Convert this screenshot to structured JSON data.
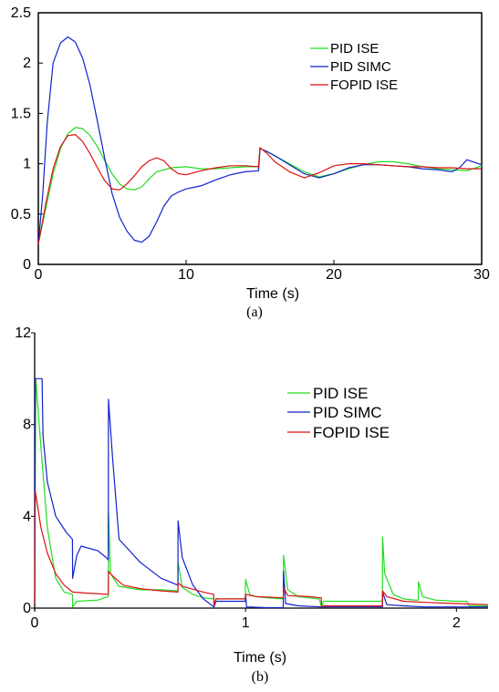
{
  "colors": {
    "pid_ise": "#22dd22",
    "pid_simc": "#1122cc",
    "fopid_ise": "#dd1111"
  },
  "chart_data": [
    {
      "type": "line",
      "caption": "(a)",
      "xlabel": "Time (s)",
      "ylabel": "",
      "xlim": [
        0,
        30
      ],
      "ylim": [
        0,
        2.5
      ],
      "xticks": [
        "0",
        "10",
        "20",
        "30"
      ],
      "yticks": [
        "0",
        "0.5",
        "1",
        "1.5",
        "2",
        "2.5"
      ],
      "legend": "top-right",
      "series": [
        {
          "name": "PID ISE",
          "color_key": "pid_ise",
          "x": [
            0,
            0.5,
            1,
            1.5,
            2,
            2.5,
            3,
            3.5,
            4,
            4.5,
            5,
            5.5,
            6,
            6.5,
            7,
            7.5,
            8,
            9,
            10,
            11,
            12,
            13,
            14,
            14.9,
            15,
            15.5,
            16,
            17,
            18,
            19,
            20,
            21,
            22,
            23,
            24,
            25,
            26,
            27,
            28,
            29,
            30
          ],
          "y": [
            0.2,
            0.55,
            0.9,
            1.15,
            1.3,
            1.36,
            1.35,
            1.28,
            1.17,
            1.03,
            0.9,
            0.8,
            0.75,
            0.74,
            0.77,
            0.85,
            0.92,
            0.96,
            0.97,
            0.95,
            0.95,
            0.96,
            0.97,
            0.97,
            1.15,
            1.12,
            1.08,
            1.0,
            0.92,
            0.87,
            0.9,
            0.95,
            0.99,
            1.02,
            1.02,
            1.0,
            0.97,
            0.95,
            0.94,
            0.93,
            0.98
          ]
        },
        {
          "name": "PID SIMC",
          "color_key": "pid_simc",
          "x": [
            0,
            0.3,
            0.6,
            1,
            1.5,
            2,
            2.5,
            3,
            3.5,
            4,
            4.5,
            5,
            5.5,
            6,
            6.5,
            7,
            7.5,
            8,
            8.5,
            9,
            9.5,
            10,
            11,
            12,
            13,
            14,
            14.9,
            15,
            15.5,
            16,
            17,
            18,
            19,
            20,
            21,
            22,
            23,
            24,
            25,
            26,
            27,
            28,
            28.5,
            29,
            30
          ],
          "y": [
            0.2,
            0.7,
            1.4,
            2.0,
            2.2,
            2.26,
            2.21,
            2.05,
            1.78,
            1.42,
            1.05,
            0.7,
            0.47,
            0.33,
            0.24,
            0.22,
            0.28,
            0.42,
            0.58,
            0.68,
            0.72,
            0.75,
            0.78,
            0.84,
            0.89,
            0.92,
            0.93,
            1.15,
            1.12,
            1.08,
            0.99,
            0.9,
            0.86,
            0.9,
            0.96,
            0.99,
            0.99,
            0.98,
            0.97,
            0.95,
            0.94,
            0.92,
            0.96,
            1.04,
            0.99
          ]
        },
        {
          "name": "FOPID ISE",
          "color_key": "fopid_ise",
          "x": [
            0,
            0.5,
            1,
            1.5,
            2,
            2.5,
            3,
            3.5,
            4,
            4.5,
            5,
            5.5,
            6,
            6.5,
            7,
            7.5,
            8,
            8.5,
            9,
            9.5,
            10,
            11,
            12,
            13,
            14,
            14.9,
            15,
            15.5,
            16,
            17,
            18,
            19,
            20,
            21,
            22,
            23,
            24,
            25,
            26,
            27,
            28,
            29,
            30
          ],
          "y": [
            0.2,
            0.6,
            0.95,
            1.17,
            1.28,
            1.29,
            1.22,
            1.1,
            0.96,
            0.83,
            0.75,
            0.74,
            0.8,
            0.88,
            0.97,
            1.03,
            1.06,
            1.03,
            0.95,
            0.9,
            0.89,
            0.93,
            0.96,
            0.98,
            0.98,
            0.97,
            1.16,
            1.1,
            1.02,
            0.92,
            0.86,
            0.91,
            0.98,
            1.0,
            1.0,
            0.99,
            0.98,
            0.97,
            0.97,
            0.96,
            0.96,
            0.95,
            0.95
          ]
        }
      ]
    },
    {
      "type": "line",
      "caption": "(b)",
      "xlabel": "Time (s)",
      "ylabel": "",
      "xlim": [
        0,
        2.15
      ],
      "ylim": [
        0,
        12
      ],
      "xticks": [
        "0",
        "1",
        "2"
      ],
      "yticks": [
        "0",
        "4",
        "8",
        "12"
      ],
      "legend": "top-right",
      "series": [
        {
          "name": "PID ISE",
          "color_key": "pid_ise",
          "x": [
            0,
            0.005,
            0.03,
            0.06,
            0.1,
            0.14,
            0.179,
            0.18,
            0.2,
            0.3,
            0.349,
            0.35,
            0.36,
            0.4,
            0.5,
            0.6,
            0.679,
            0.68,
            0.7,
            0.75,
            0.8,
            0.85,
            0.851,
            0.86,
            0.999,
            1.0,
            1.02,
            1.05,
            1.1,
            1.179,
            1.18,
            1.2,
            1.25,
            1.3,
            1.35,
            1.36,
            1.37,
            1.38,
            1.5,
            1.649,
            1.65,
            1.66,
            1.7,
            1.75,
            1.8,
            1.819,
            1.82,
            1.84,
            1.9,
            2.0,
            2.05,
            2.06,
            2.15
          ],
          "y": [
            0.2,
            10.0,
            7.0,
            3.5,
            1.3,
            0.7,
            0.6,
            0.05,
            0.3,
            0.35,
            0.5,
            4.2,
            1.5,
            0.95,
            0.8,
            0.8,
            0.75,
            2.0,
            0.9,
            0.6,
            0.45,
            0.4,
            0.05,
            0.4,
            0.4,
            1.25,
            0.6,
            0.5,
            0.45,
            0.4,
            2.3,
            0.8,
            0.5,
            0.45,
            0.4,
            0.05,
            0.3,
            0.3,
            0.3,
            0.3,
            3.1,
            1.5,
            0.6,
            0.4,
            0.35,
            0.35,
            1.15,
            0.5,
            0.35,
            0.3,
            0.3,
            0.1,
            0.1
          ]
        },
        {
          "name": "PID SIMC",
          "color_key": "pid_simc",
          "x": [
            0,
            0.003,
            0.035,
            0.04,
            0.06,
            0.1,
            0.15,
            0.179,
            0.18,
            0.2,
            0.22,
            0.3,
            0.34,
            0.349,
            0.35,
            0.37,
            0.4,
            0.5,
            0.6,
            0.679,
            0.68,
            0.7,
            0.75,
            0.8,
            0.85,
            0.86,
            0.999,
            1.0,
            1.005,
            1.1,
            1.179,
            1.18,
            1.19,
            1.25,
            1.36,
            1.5,
            1.649,
            1.65,
            1.67,
            1.75,
            1.85,
            2.0,
            2.15
          ],
          "y": [
            0.2,
            10.0,
            10.0,
            7.5,
            5.5,
            4.0,
            3.3,
            3.0,
            1.3,
            2.3,
            2.7,
            2.5,
            2.2,
            2.1,
            9.1,
            6.5,
            3.0,
            2.0,
            1.3,
            1.0,
            3.8,
            2.2,
            1.0,
            0.4,
            0.05,
            0.3,
            0.3,
            0.6,
            0.05,
            0.02,
            0.02,
            1.6,
            0.2,
            0.1,
            0.05,
            0.05,
            0.05,
            0.7,
            0.15,
            0.1,
            0.05,
            0.05,
            0.05
          ]
        },
        {
          "name": "FOPID ISE",
          "color_key": "fopid_ise",
          "x": [
            0,
            0.003,
            0.03,
            0.06,
            0.1,
            0.14,
            0.18,
            0.25,
            0.349,
            0.35,
            0.37,
            0.42,
            0.5,
            0.6,
            0.679,
            0.68,
            0.7,
            0.8,
            0.849,
            0.85,
            0.86,
            0.999,
            1.0,
            1.05,
            1.179,
            1.18,
            1.2,
            1.3,
            1.359,
            1.36,
            1.37,
            1.5,
            1.649,
            1.65,
            1.67,
            1.75,
            1.85,
            2.0,
            2.15
          ],
          "y": [
            0.2,
            5.1,
            3.5,
            2.4,
            1.5,
            1.0,
            0.7,
            0.65,
            0.6,
            1.6,
            1.4,
            1.0,
            0.85,
            0.75,
            0.7,
            1.1,
            0.95,
            0.7,
            0.6,
            0.1,
            0.4,
            0.4,
            0.6,
            0.5,
            0.45,
            0.9,
            0.55,
            0.5,
            0.45,
            0.05,
            0.1,
            0.1,
            0.1,
            0.75,
            0.5,
            0.3,
            0.25,
            0.2,
            0.15
          ]
        }
      ]
    }
  ]
}
